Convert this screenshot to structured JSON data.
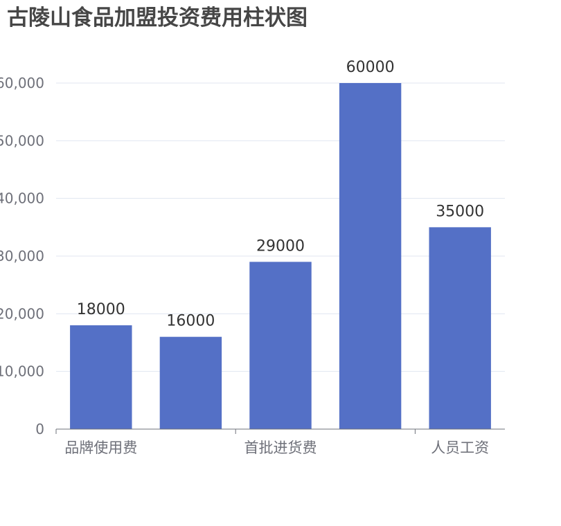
{
  "chart_data": {
    "type": "bar",
    "title": "古陵山食品加盟投资费用柱状图",
    "categories": [
      "品牌使用费",
      "",
      "首批进货费",
      "",
      "人员工资"
    ],
    "values": [
      18000,
      16000,
      29000,
      60000,
      35000
    ],
    "value_labels": [
      "18000",
      "16000",
      "29000",
      "60000",
      "35000"
    ],
    "y_ticks": [
      "0",
      "10,000",
      "20,000",
      "30,000",
      "40,000",
      "50,000",
      "60,000"
    ],
    "ylim": [
      0,
      60000
    ],
    "grid": true,
    "legend": "none",
    "bar_color": "#5470c6"
  }
}
